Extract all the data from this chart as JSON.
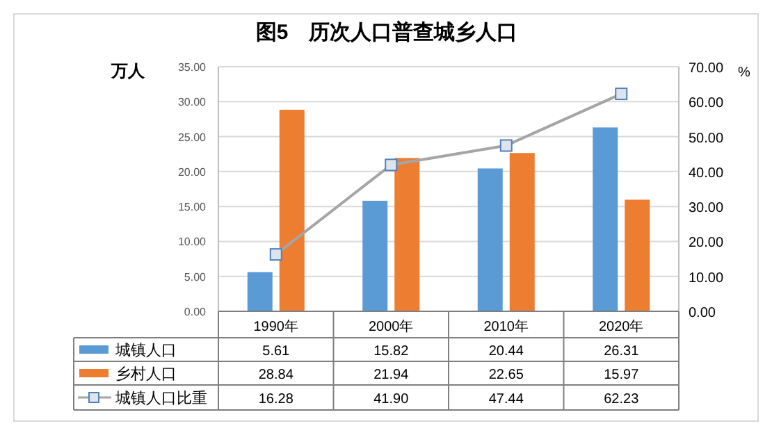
{
  "chart_data": {
    "type": "bar",
    "title": "图5　历次人口普查城乡人口",
    "ylabel": "万人",
    "y2label": "%",
    "categories": [
      "1990年",
      "2000年",
      "2010年",
      "2020年"
    ],
    "series": [
      {
        "name": "城镇人口",
        "color": "#5b9bd5",
        "values": [
          5.61,
          15.82,
          20.44,
          26.31
        ],
        "value_labels": [
          "5.61",
          "15.82",
          "20.44",
          "26.31"
        ]
      },
      {
        "name": "乡村人口",
        "color": "#ed7d31",
        "values": [
          28.84,
          21.94,
          22.65,
          15.97
        ],
        "value_labels": [
          "28.84",
          "21.94",
          "22.65",
          "15.97"
        ]
      },
      {
        "name": "城镇人口比重",
        "type": "line",
        "axis": "y2",
        "color": "#a5a5a5",
        "values": [
          16.28,
          41.9,
          47.44,
          62.23
        ],
        "value_labels": [
          "16.28",
          "41.90",
          "47.44",
          "62.23"
        ]
      }
    ],
    "ylim": [
      0,
      35
    ],
    "yticks": [
      {
        "value": 0,
        "label": "0.00"
      },
      {
        "value": 5,
        "label": "5.00"
      },
      {
        "value": 10,
        "label": "10.00"
      },
      {
        "value": 15,
        "label": "15.00"
      },
      {
        "value": 20,
        "label": "20.00"
      },
      {
        "value": 25,
        "label": "25.00"
      },
      {
        "value": 30,
        "label": "30.00"
      },
      {
        "value": 35,
        "label": "35.00"
      }
    ],
    "y2lim": [
      0,
      70
    ],
    "y2ticks": [
      {
        "value": 0,
        "label": "0.00"
      },
      {
        "value": 10,
        "label": "10.00"
      },
      {
        "value": 20,
        "label": "20.00"
      },
      {
        "value": 30,
        "label": "30.00"
      },
      {
        "value": 40,
        "label": "40.00"
      },
      {
        "value": 50,
        "label": "50.00"
      },
      {
        "value": 60,
        "label": "60.00"
      },
      {
        "value": 70,
        "label": "70.00"
      }
    ],
    "grid": "y",
    "legend": "bottom",
    "marker": "square"
  }
}
